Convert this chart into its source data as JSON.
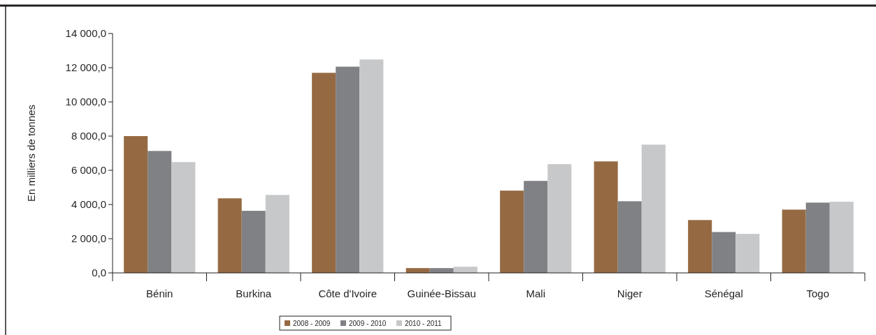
{
  "chart_data": {
    "type": "bar",
    "ylabel": "En milliers de tonnes",
    "categories": [
      "Bénin",
      "Burkina",
      "Côte d'Ivoire",
      "Guinée-Bissau",
      "Mali",
      "Niger",
      "Sénégal",
      "Togo"
    ],
    "series": [
      {
        "name": "2008 - 2009",
        "color": "#956a43",
        "values": [
          8000,
          4360,
          11700,
          280,
          4810,
          6520,
          3090,
          3700
        ]
      },
      {
        "name": "2009 - 2010",
        "color": "#808184",
        "values": [
          7130,
          3630,
          12060,
          280,
          5380,
          4190,
          2390,
          4110
        ]
      },
      {
        "name": "2010 - 2011",
        "color": "#c7c8ca",
        "values": [
          6480,
          4560,
          12480,
          360,
          6360,
          7500,
          2280,
          4160
        ]
      }
    ],
    "ylim": [
      0,
      14000
    ],
    "yticks": [
      {
        "value": 0,
        "label": "0,0"
      },
      {
        "value": 2000,
        "label": "2 000,0"
      },
      {
        "value": 4000,
        "label": "4 000,0"
      },
      {
        "value": 6000,
        "label": "6 000,0"
      },
      {
        "value": 8000,
        "label": "8 000,0"
      },
      {
        "value": 10000,
        "label": "10 000,0"
      },
      {
        "value": 12000,
        "label": "12 000,0"
      },
      {
        "value": 14000,
        "label": "14 000,0"
      }
    ],
    "legend": "bottom",
    "grid": false
  }
}
